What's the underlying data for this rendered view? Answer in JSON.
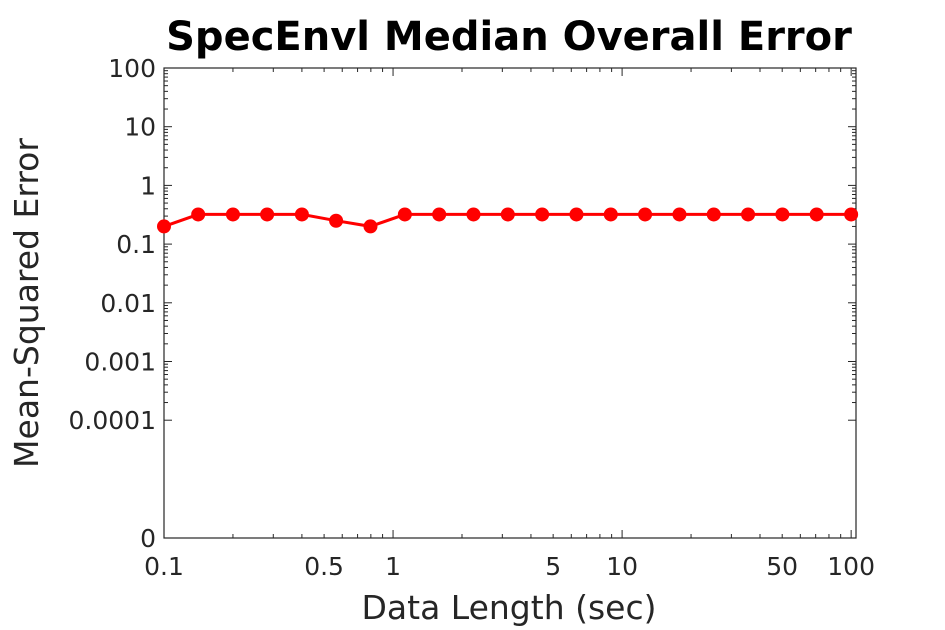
{
  "chart_data": {
    "type": "line",
    "title": "SpecEnvl Median Overall Error",
    "xlabel": "Data Length (sec)",
    "ylabel": "Mean-Squared Error",
    "x_scale": "log",
    "y_scale": "log",
    "xlim": [
      0.1,
      105
    ],
    "ylim": [
      0,
      100
    ],
    "grid": false,
    "box": true,
    "x_ticks": [
      {
        "value": 0.1,
        "label": "0.1"
      },
      {
        "value": 0.5,
        "label": "0.5"
      },
      {
        "value": 1,
        "label": "1"
      },
      {
        "value": 5,
        "label": "5"
      },
      {
        "value": 10,
        "label": "10"
      },
      {
        "value": 50,
        "label": "50"
      },
      {
        "value": 100,
        "label": "100"
      }
    ],
    "y_ticks": [
      {
        "value": 100,
        "label": "100"
      },
      {
        "value": 10,
        "label": "10"
      },
      {
        "value": 1,
        "label": "1"
      },
      {
        "value": 0.1,
        "label": "0.1"
      },
      {
        "value": 0.01,
        "label": "0.01"
      },
      {
        "value": 0.001,
        "label": "0.001"
      },
      {
        "value": 0.0001,
        "label": "0.0001"
      },
      {
        "value": 0,
        "label": "0"
      }
    ],
    "series": [
      {
        "color": "#ff0000",
        "marker": "circle",
        "x": [
          0.1,
          0.141,
          0.2,
          0.282,
          0.4,
          0.564,
          0.797,
          1.126,
          1.59,
          2.245,
          3.17,
          4.476,
          6.32,
          8.925,
          12.6,
          17.8,
          25.13,
          35.48,
          50.1,
          70.7,
          100
        ],
        "y": [
          0.2,
          0.32,
          0.32,
          0.32,
          0.32,
          0.25,
          0.2,
          0.32,
          0.32,
          0.32,
          0.32,
          0.32,
          0.32,
          0.32,
          0.32,
          0.32,
          0.32,
          0.32,
          0.32,
          0.32,
          0.32
        ]
      }
    ]
  }
}
